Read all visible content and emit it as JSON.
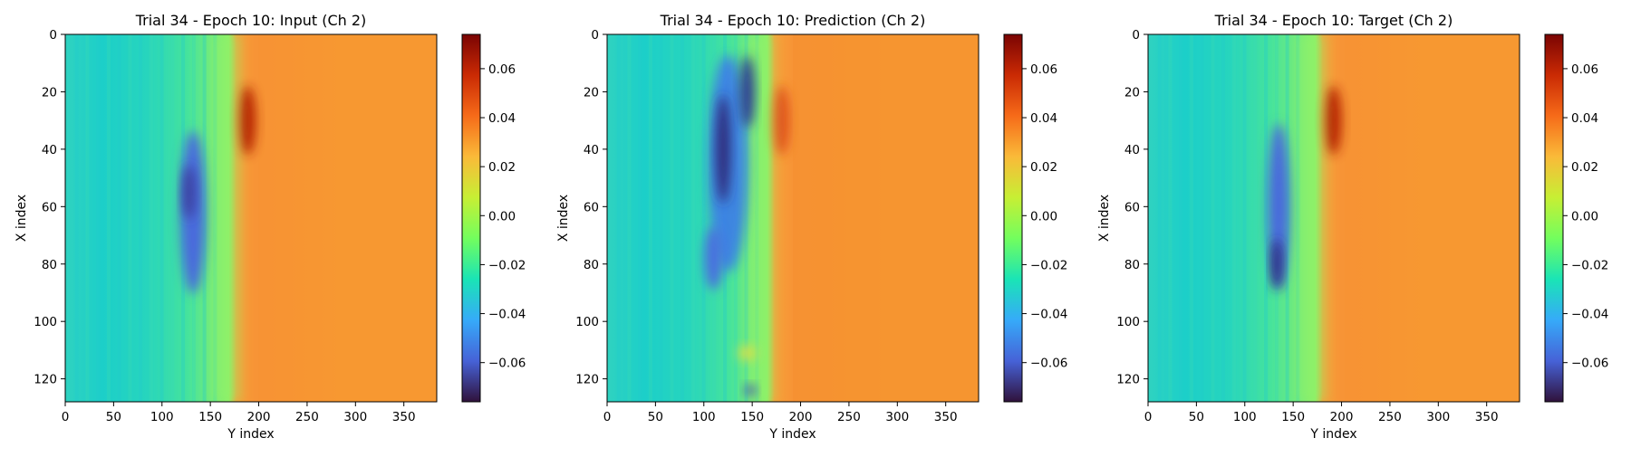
{
  "colormap": {
    "name": "turbo",
    "stops": [
      "#30123b",
      "#4662d7",
      "#36aaf9",
      "#1ae4b6",
      "#72fe5e",
      "#c7ef34",
      "#faba39",
      "#f66b19",
      "#ca2a04",
      "#7a0403"
    ]
  },
  "chart_data": [
    {
      "type": "heatmap",
      "title": "Trial 34 - Epoch 10: Input (Ch 2)",
      "xlabel": "Y index",
      "ylabel": "X index",
      "xlim": [
        0,
        384
      ],
      "ylim": [
        128,
        0
      ],
      "xticks": [
        "0",
        "50",
        "100",
        "150",
        "200",
        "250",
        "300",
        "350"
      ],
      "yticks": [
        "0",
        "20",
        "40",
        "60",
        "80",
        "100",
        "120"
      ],
      "colorbar": {
        "vmin": -0.076,
        "vmax": 0.074,
        "ticks": [
          "0.06",
          "0.04",
          "0.02",
          "0.00",
          "−0.02",
          "−0.04",
          "−0.06"
        ]
      }
    },
    {
      "type": "heatmap",
      "title": "Trial 34 - Epoch 10: Prediction (Ch 2)",
      "xlabel": "Y index",
      "ylabel": "X index",
      "xlim": [
        0,
        384
      ],
      "ylim": [
        128,
        0
      ],
      "xticks": [
        "0",
        "50",
        "100",
        "150",
        "200",
        "250",
        "300",
        "350"
      ],
      "yticks": [
        "0",
        "20",
        "40",
        "60",
        "80",
        "100",
        "120"
      ],
      "colorbar": {
        "vmin": -0.076,
        "vmax": 0.074,
        "ticks": [
          "0.06",
          "0.04",
          "0.02",
          "0.00",
          "−0.02",
          "−0.04",
          "−0.06"
        ]
      }
    },
    {
      "type": "heatmap",
      "title": "Trial 34 - Epoch 10: Target (Ch 2)",
      "xlabel": "Y index",
      "ylabel": "X index",
      "xlim": [
        0,
        384
      ],
      "ylim": [
        128,
        0
      ],
      "xticks": [
        "0",
        "50",
        "100",
        "150",
        "200",
        "250",
        "300",
        "350"
      ],
      "yticks": [
        "0",
        "20",
        "40",
        "60",
        "80",
        "100",
        "120"
      ],
      "colorbar": {
        "vmin": -0.076,
        "vmax": 0.074,
        "ticks": [
          "0.06",
          "0.04",
          "0.02",
          "0.00",
          "−0.02",
          "−0.04",
          "−0.06"
        ]
      }
    }
  ]
}
